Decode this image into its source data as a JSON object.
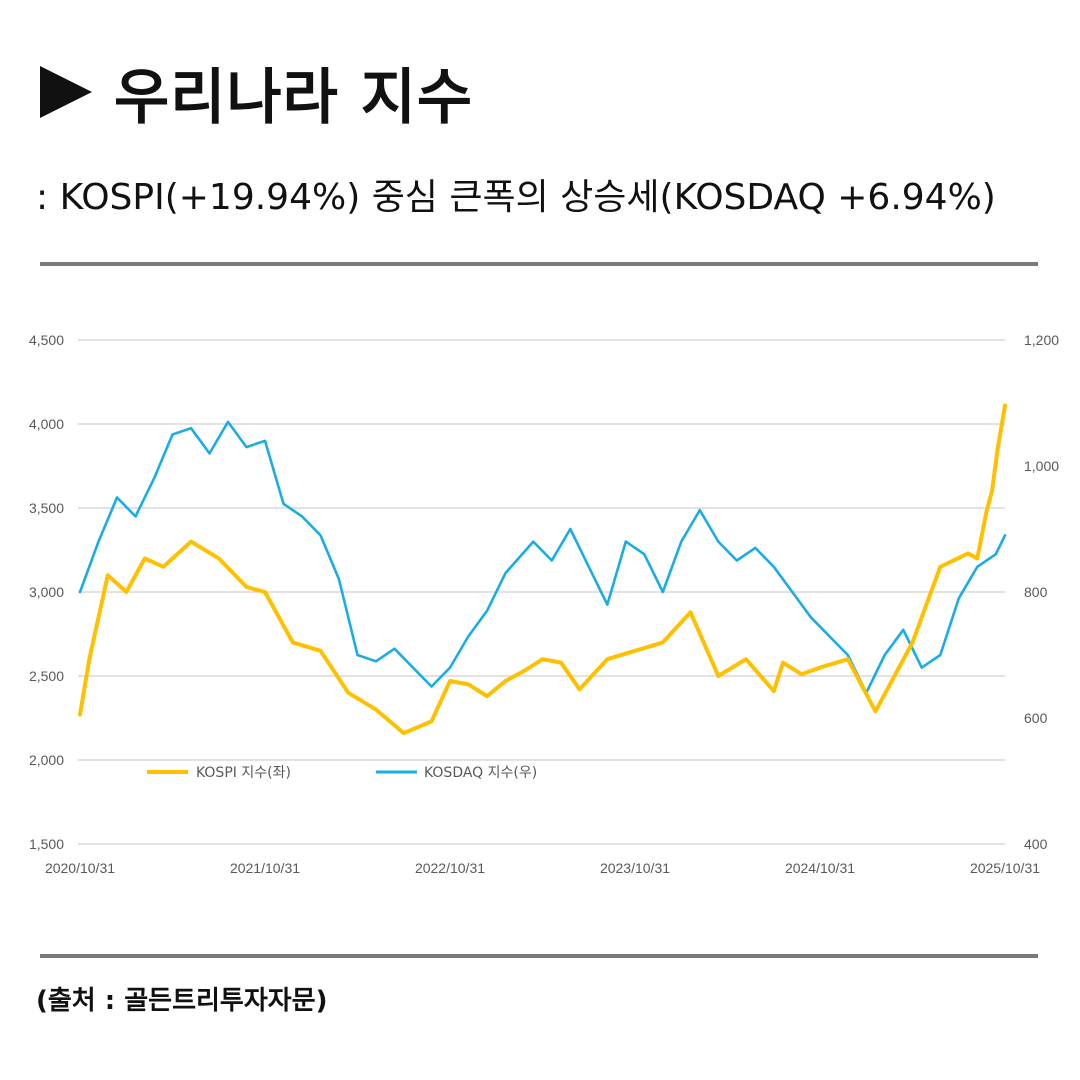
{
  "header": {
    "title": "우리나라 지수",
    "subtitle": ": KOSPI(+19.94%) 중심 큰폭의 상승세(KOSDAQ +6.94%)"
  },
  "footer": {
    "source": "(출처 : 골든트리투자자문)"
  },
  "colors": {
    "kospi": "#FFC000",
    "kosdaq": "#1AACE3",
    "grid": "#D9D9D9",
    "rule": "#7A7A7A"
  },
  "chart_data": {
    "type": "line",
    "title": "",
    "x_labels": [
      "2020/10/31",
      "2021/10/31",
      "2022/10/31",
      "2023/10/31",
      "2024/10/31",
      "2025/10/31"
    ],
    "left_axis": {
      "ylim": [
        1500,
        4500
      ],
      "ticks": [
        "1,500",
        "2,000",
        "2,500",
        "3,000",
        "3,500",
        "4,000",
        "4,500"
      ]
    },
    "right_axis": {
      "ylim": [
        400,
        1200
      ],
      "ticks": [
        "400",
        "600",
        "800",
        "1,000",
        "1,200"
      ]
    },
    "legend": {
      "position": "bottom-left"
    },
    "series": [
      {
        "name": "KOSPI 지수(좌)",
        "axis": "left",
        "x": [
          0,
          0.05,
          0.15,
          0.25,
          0.35,
          0.45,
          0.6,
          0.75,
          0.9,
          1.0,
          1.15,
          1.3,
          1.45,
          1.6,
          1.75,
          1.9,
          2.0,
          2.1,
          2.2,
          2.3,
          2.4,
          2.5,
          2.6,
          2.7,
          2.85,
          3.0,
          3.15,
          3.3,
          3.45,
          3.6,
          3.75,
          3.8,
          3.9,
          4.0,
          4.15,
          4.3,
          4.5,
          4.65,
          4.8,
          4.85,
          4.9,
          4.93,
          4.96,
          5.0
        ],
        "values": [
          2270,
          2600,
          3100,
          3000,
          3200,
          3150,
          3300,
          3200,
          3030,
          3000,
          2700,
          2650,
          2400,
          2300,
          2160,
          2230,
          2470,
          2450,
          2380,
          2470,
          2530,
          2600,
          2580,
          2420,
          2600,
          2650,
          2700,
          2880,
          2500,
          2600,
          2410,
          2580,
          2510,
          2550,
          2600,
          2290,
          2700,
          3150,
          3230,
          3200,
          3480,
          3600,
          3850,
          4110
        ]
      },
      {
        "name": "KOSDAQ 지수(우)",
        "axis": "right",
        "x": [
          0,
          0.1,
          0.2,
          0.3,
          0.4,
          0.5,
          0.6,
          0.7,
          0.8,
          0.9,
          1.0,
          1.1,
          1.2,
          1.3,
          1.4,
          1.5,
          1.6,
          1.7,
          1.8,
          1.9,
          2.0,
          2.1,
          2.2,
          2.3,
          2.45,
          2.55,
          2.65,
          2.75,
          2.85,
          2.95,
          3.05,
          3.15,
          3.25,
          3.35,
          3.45,
          3.55,
          3.65,
          3.75,
          3.85,
          3.95,
          4.05,
          4.15,
          4.25,
          4.35,
          4.45,
          4.55,
          4.65,
          4.75,
          4.85,
          4.95,
          5.0
        ],
        "values": [
          800,
          880,
          950,
          920,
          980,
          1050,
          1060,
          1020,
          1070,
          1030,
          1040,
          940,
          920,
          890,
          820,
          700,
          690,
          710,
          680,
          650,
          680,
          730,
          770,
          830,
          880,
          850,
          900,
          840,
          780,
          880,
          860,
          800,
          880,
          930,
          880,
          850,
          870,
          840,
          800,
          760,
          730,
          700,
          640,
          700,
          740,
          680,
          700,
          790,
          840,
          860,
          890
        ]
      }
    ]
  }
}
